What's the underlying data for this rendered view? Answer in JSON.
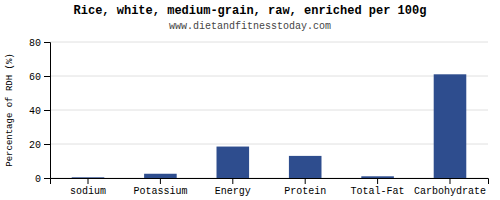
{
  "chart_data": {
    "type": "bar",
    "title": "Rice, white, medium-grain, raw, enriched per 100g",
    "subtitle": "www.dietandfitnesstoday.com",
    "ylabel": "Percentage of RDH (%)",
    "categories": [
      "sodium",
      "Potassium",
      "Energy",
      "Protein",
      "Total-Fat",
      "Carbohydrate"
    ],
    "values": [
      0.4,
      2.5,
      18.5,
      13.0,
      1.0,
      61.0
    ],
    "color": "#2e4d8e",
    "ylim": [
      0,
      80
    ],
    "yticks": [
      0,
      20,
      40,
      60,
      80
    ],
    "grid": true
  }
}
